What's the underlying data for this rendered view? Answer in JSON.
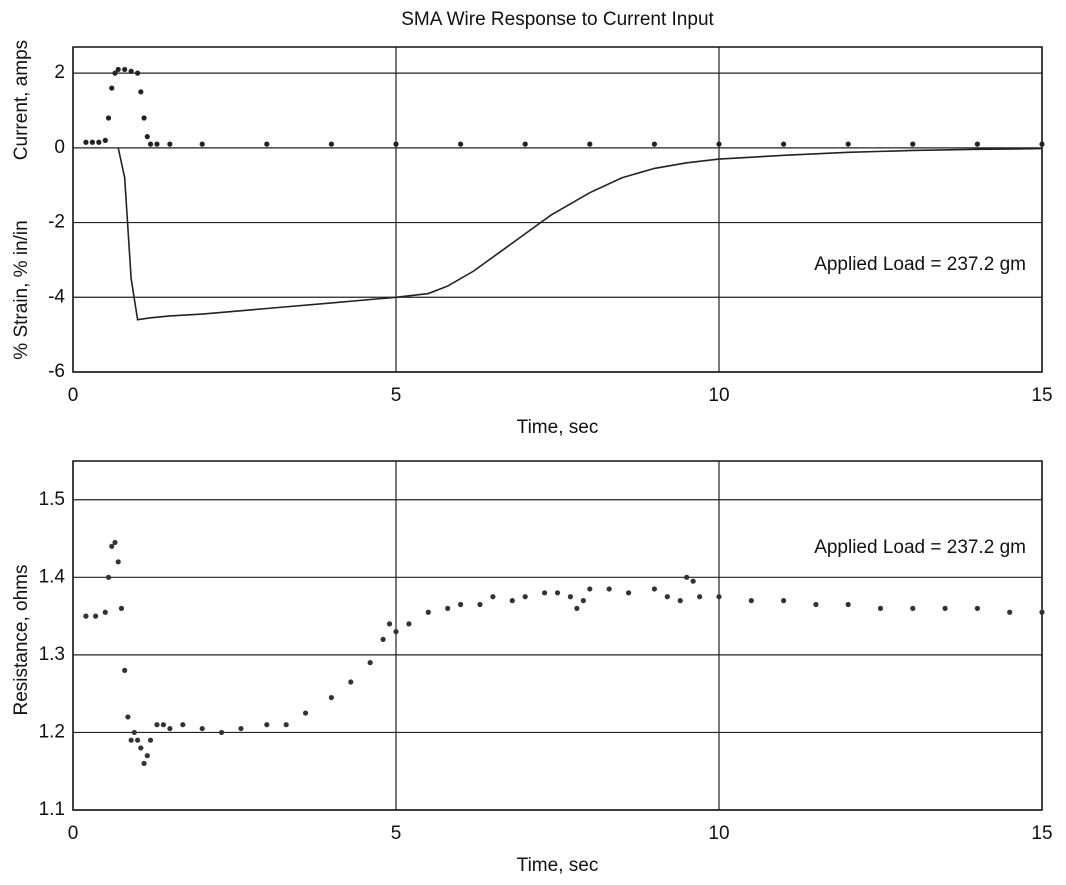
{
  "chart_data": [
    {
      "type": "line",
      "title": "SMA Wire Response to Current Input",
      "xlabel": "Time, sec",
      "ylabels": [
        "% Strain, % in/in",
        "Current, amps"
      ],
      "annotation": "Applied Load = 237.2 gm",
      "xlim": [
        0,
        15
      ],
      "xticks": [
        0,
        5,
        10,
        15
      ],
      "ylim": [
        -6,
        2.7
      ],
      "yticks": [
        -6,
        -4,
        -2,
        0,
        2
      ],
      "grid": true,
      "series": [
        {
          "color": "#222222",
          "marker": true,
          "x": [
            0.2,
            0.3,
            0.4,
            0.5,
            0.55,
            0.6,
            0.65,
            0.7,
            0.8,
            0.9,
            1.0,
            1.05,
            1.1,
            1.15,
            1.2,
            1.3,
            1.5,
            2,
            3,
            4,
            5,
            6,
            7,
            8,
            9,
            10,
            11,
            12,
            13,
            14,
            15
          ],
          "values": [
            0.15,
            0.15,
            0.15,
            0.2,
            0.8,
            1.6,
            2.0,
            2.1,
            2.1,
            2.05,
            2.0,
            1.5,
            0.8,
            0.3,
            0.1,
            0.1,
            0.1,
            0.1,
            0.1,
            0.1,
            0.1,
            0.1,
            0.1,
            0.1,
            0.1,
            0.1,
            0.1,
            0.1,
            0.1,
            0.1,
            0.1
          ]
        },
        {
          "color": "#222222",
          "marker": false,
          "x": [
            0.7,
            0.8,
            0.9,
            1.0,
            1.2,
            1.5,
            2,
            3,
            4,
            5,
            5.5,
            5.8,
            6.2,
            6.6,
            7.0,
            7.4,
            8,
            8.5,
            9,
            9.5,
            10,
            11,
            12,
            13,
            14,
            15
          ],
          "values": [
            0,
            -0.8,
            -3.5,
            -4.6,
            -4.55,
            -4.5,
            -4.45,
            -4.3,
            -4.15,
            -4.0,
            -3.9,
            -3.7,
            -3.3,
            -2.8,
            -2.3,
            -1.8,
            -1.2,
            -0.8,
            -0.55,
            -0.4,
            -0.3,
            -0.2,
            -0.12,
            -0.07,
            -0.04,
            -0.02
          ]
        }
      ]
    },
    {
      "type": "line",
      "xlabel": "Time, sec",
      "ylabels": [
        "Resistance, ohms"
      ],
      "annotation": "Applied Load = 237.2 gm",
      "xlim": [
        0,
        15
      ],
      "xticks": [
        0,
        5,
        10,
        15
      ],
      "ylim": [
        1.1,
        1.55
      ],
      "yticks": [
        1.1,
        1.2,
        1.3,
        1.4,
        1.5
      ],
      "grid": true,
      "series": [
        {
          "color": "#333333",
          "marker": true,
          "x": [
            0.2,
            0.35,
            0.5,
            0.55,
            0.6,
            0.65,
            0.7,
            0.75,
            0.8,
            0.85,
            0.9,
            0.95,
            1.0,
            1.05,
            1.1,
            1.15,
            1.2,
            1.3,
            1.4,
            1.5,
            1.7,
            2,
            2.3,
            2.6,
            3,
            3.3,
            3.6,
            4,
            4.3,
            4.6,
            4.8,
            4.9,
            5.0,
            5.2,
            5.5,
            5.8,
            6,
            6.3,
            6.5,
            6.8,
            7,
            7.3,
            7.5,
            7.7,
            7.8,
            7.9,
            8,
            8.3,
            8.6,
            9,
            9.2,
            9.4,
            9.5,
            9.6,
            9.7,
            10,
            10.5,
            11,
            11.5,
            12,
            12.5,
            13,
            13.5,
            14,
            14.5,
            15
          ],
          "values": [
            1.35,
            1.35,
            1.355,
            1.4,
            1.44,
            1.445,
            1.42,
            1.36,
            1.28,
            1.22,
            1.19,
            1.2,
            1.19,
            1.18,
            1.16,
            1.17,
            1.19,
            1.21,
            1.21,
            1.205,
            1.21,
            1.205,
            1.2,
            1.205,
            1.21,
            1.21,
            1.225,
            1.245,
            1.265,
            1.29,
            1.32,
            1.34,
            1.33,
            1.34,
            1.355,
            1.36,
            1.365,
            1.365,
            1.375,
            1.37,
            1.375,
            1.38,
            1.38,
            1.375,
            1.36,
            1.37,
            1.385,
            1.385,
            1.38,
            1.385,
            1.375,
            1.37,
            1.4,
            1.395,
            1.375,
            1.375,
            1.37,
            1.37,
            1.365,
            1.365,
            1.36,
            1.36,
            1.36,
            1.36,
            1.355,
            1.355
          ]
        }
      ]
    }
  ]
}
